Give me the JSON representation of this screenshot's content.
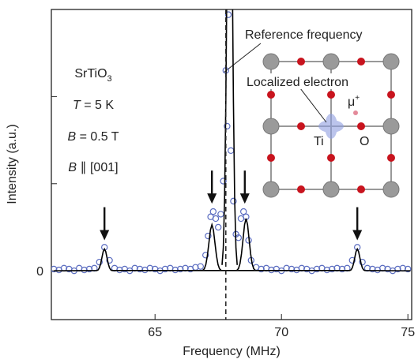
{
  "chart_data": {
    "type": "scatter",
    "xlabel": "Frequency (MHz)",
    "ylabel": "Intensity (a.u.)",
    "xlim": [
      60.9,
      75.15
    ],
    "xticks": [
      65,
      70,
      75
    ],
    "ylim": [
      -0.56,
      3.0
    ],
    "yticks": [
      0
    ],
    "yticks_unlabeled": [
      1,
      2
    ],
    "marker_color": "#5a6cc0",
    "x": [
      61.0,
      61.2,
      61.4,
      61.6,
      61.8,
      62.0,
      62.2,
      62.4,
      62.6,
      62.8,
      63.0,
      63.2,
      63.4,
      63.6,
      63.8,
      64.0,
      64.2,
      64.4,
      64.6,
      64.8,
      65.0,
      65.2,
      65.4,
      65.6,
      65.8,
      66.0,
      66.2,
      66.4,
      66.6,
      66.8,
      67.0,
      67.1,
      67.2,
      67.3,
      67.4,
      67.5,
      67.6,
      67.7,
      67.8,
      67.85,
      67.9,
      68.0,
      68.1,
      68.2,
      68.3,
      68.4,
      68.5,
      68.6,
      68.7,
      68.8,
      69.0,
      69.2,
      69.4,
      69.6,
      69.8,
      70.0,
      70.2,
      70.4,
      70.6,
      70.8,
      71.0,
      71.2,
      71.4,
      71.6,
      71.8,
      72.0,
      72.2,
      72.4,
      72.6,
      72.8,
      73.0,
      73.2,
      73.4,
      73.6,
      73.8,
      74.0,
      74.2,
      74.4,
      74.6,
      74.8,
      75.0
    ],
    "values": [
      0.02,
      0.01,
      0.03,
      0.02,
      0.0,
      0.03,
      0.01,
      0.02,
      0.03,
      0.1,
      0.27,
      0.12,
      0.03,
      0.01,
      0.02,
      0.0,
      0.03,
      0.02,
      0.01,
      0.03,
      0.02,
      0.0,
      0.02,
      0.03,
      0.01,
      0.02,
      0.03,
      0.02,
      0.04,
      0.05,
      0.18,
      0.4,
      0.62,
      0.68,
      0.6,
      0.5,
      0.65,
      1.03,
      2.3,
      1.66,
      2.94,
      1.38,
      0.8,
      0.42,
      0.38,
      0.6,
      0.68,
      0.62,
      0.35,
      0.12,
      0.04,
      0.02,
      0.03,
      0.01,
      0.02,
      0.0,
      0.03,
      0.02,
      0.01,
      0.03,
      0.02,
      0.0,
      0.02,
      0.03,
      0.01,
      0.02,
      0.03,
      0.02,
      0.03,
      0.12,
      0.27,
      0.1,
      0.03,
      0.02,
      0.01,
      0.03,
      0.02,
      0.0,
      0.02,
      0.03,
      0.02
    ],
    "fit_color": "#000000",
    "fits": [
      {
        "x": [
          61.0,
          62.7,
          62.75,
          62.8,
          62.85,
          62.9,
          62.95,
          63.0,
          63.05,
          63.1,
          63.15,
          63.2,
          63.25,
          63.3,
          72.7,
          72.75,
          72.8,
          72.85,
          72.9,
          72.95,
          73.0,
          73.05,
          73.1,
          73.15,
          73.2,
          73.25,
          73.3,
          75.1
        ],
        "values": [
          0,
          0.003,
          0.011,
          0.034,
          0.081,
          0.152,
          0.221,
          0.25,
          0.221,
          0.152,
          0.081,
          0.034,
          0.011,
          0.003,
          0.003,
          0.011,
          0.034,
          0.081,
          0.152,
          0.221,
          0.25,
          0.221,
          0.152,
          0.081,
          0.034,
          0.011,
          0.003,
          0
        ]
      },
      {
        "x": [
          66.89,
          66.95,
          67.01,
          67.07,
          67.13,
          67.19,
          67.25,
          67.31,
          67.37,
          67.43,
          67.49,
          67.55,
          67.61
        ],
        "values": [
          0.006,
          0.023,
          0.072,
          0.172,
          0.321,
          0.468,
          0.53,
          0.468,
          0.321,
          0.172,
          0.072,
          0.023,
          0.006
        ]
      },
      {
        "x": [
          67.65,
          67.7,
          67.75,
          67.8,
          67.85,
          67.9,
          67.95,
          68.0,
          68.05,
          68.1,
          68.15,
          68.2,
          68.25
        ],
        "values": [
          0.067,
          0.263,
          0.812,
          1.948,
          3.639,
          5.295,
          6,
          5.295,
          3.639,
          1.948,
          0.812,
          0.263,
          0.067
        ]
      },
      {
        "x": [
          68.24,
          68.3,
          68.36,
          68.42,
          68.48,
          68.54,
          68.6,
          68.66,
          68.72,
          68.78,
          68.84,
          68.9,
          68.96
        ],
        "values": [
          0.007,
          0.026,
          0.081,
          0.195,
          0.364,
          0.53,
          0.6,
          0.53,
          0.364,
          0.195,
          0.081,
          0.026,
          0.007
        ]
      }
    ],
    "reference_frequency": 67.8,
    "reference_label": "Reference frequency",
    "arrows": [
      {
        "x": 63.0,
        "y": 0.35
      },
      {
        "x": 67.25,
        "y": 0.77
      },
      {
        "x": 68.55,
        "y": 0.77
      },
      {
        "x": 73.0,
        "y": 0.35
      }
    ],
    "annotations": {
      "sample": {
        "formula": "SrTiO",
        "subscript": "3"
      },
      "temperature": {
        "symbol": "T",
        "text": " = 5 K"
      },
      "field": {
        "symbol": "B",
        "text": " = 0.5 T"
      },
      "orientation": {
        "symbol": "B",
        "text": " ∥ [001]"
      }
    },
    "inset": {
      "electron_label": "Localized electron",
      "ti_label": "Ti",
      "o_label": "O",
      "muon_label": "μ",
      "muon_charge": "+"
    }
  }
}
